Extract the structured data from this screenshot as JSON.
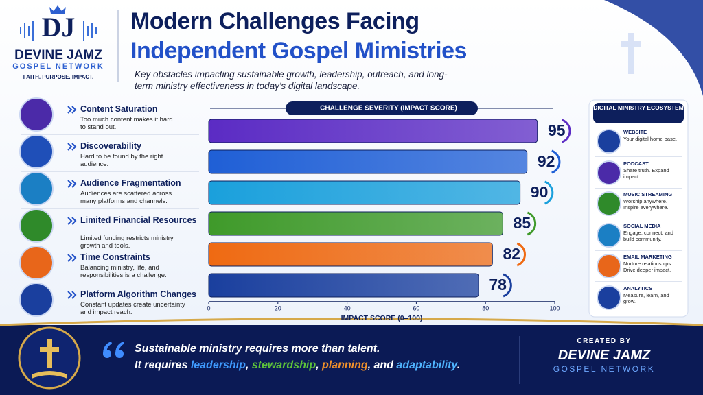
{
  "logo": {
    "monogram": "DJ",
    "brand": "DEVINE JAMZ",
    "network": "GOSPEL NETWORK",
    "tagline": "FAITH. PURPOSE. IMPACT."
  },
  "header": {
    "title_line1": "Modern Challenges Facing",
    "title_line2": "Independent Gospel Mimistries",
    "subtitle": "Key obstacles impacting sustainable growth, leadership, outreach, and long-term ministry effectiveness in today's digital landscape."
  },
  "challenges": [
    {
      "description": "Too much content makes it hard to stand out."
    },
    {
      "description": "Hard to be found by the right audience."
    },
    {
      "description": "Audiences are scattered across many platforms and channels."
    },
    {
      "description": "Limited funding restricts ministry growth and tools."
    },
    {
      "description": "Balancing ministry, life, and responsibilities is a challenge."
    },
    {
      "description": "Constant updates create uncertainty and impact reach."
    }
  ],
  "chart_data": {
    "type": "bar",
    "orientation": "horizontal",
    "title": "CHALLENGE SEVERITY (IMPACT SCORE)",
    "x_label": "IMPACT SCORE (0–100)",
    "categories": [
      "Content Saturation",
      "Discoverability",
      "Audience Fragmentation",
      "Limited Financial Resources",
      "Time Constraints",
      "Platform Algorithm Changes"
    ],
    "values": [
      95,
      92,
      90,
      85,
      82,
      78
    ],
    "colors": [
      "#5b2bc4",
      "#1f5fd6",
      "#1aa0dc",
      "#3f9a2a",
      "#ef6a12",
      "#1a3f9e"
    ],
    "xlim": [
      0,
      100
    ],
    "xticks": [
      0,
      20,
      40,
      60,
      80,
      100
    ],
    "grid": false
  },
  "ecosystem": {
    "title": "DIGITAL MINISTRY ECOSYSTEM",
    "items": [
      {
        "name": "WEBSITE",
        "description": "Your digital home base."
      },
      {
        "name": "PODCAST",
        "description": "Share truth. Expand impact."
      },
      {
        "name": "MUSIC STREAMING",
        "description": "Worship anywhere. Inspire everywhere."
      },
      {
        "name": "SOCIAL MEDIA",
        "description": "Engage, connect, and build community."
      },
      {
        "name": "EMAIL MARKETING",
        "description": "Nurture relationships. Drive deeper impact."
      },
      {
        "name": "ANALYTICS",
        "description": "Measure, learn, and grow."
      }
    ]
  },
  "footer": {
    "quote_line1": "Sustainable ministry requires more than talent.",
    "quote_line2": [
      "It requires ",
      "leadership",
      ", ",
      "stewardship",
      ", ",
      "planning",
      ", and ",
      "adaptability",
      "."
    ],
    "credit_label": "CREATED BY",
    "credit_brand": "DEVINE JAMZ",
    "credit_network": "GOSPEL NETWORK"
  }
}
